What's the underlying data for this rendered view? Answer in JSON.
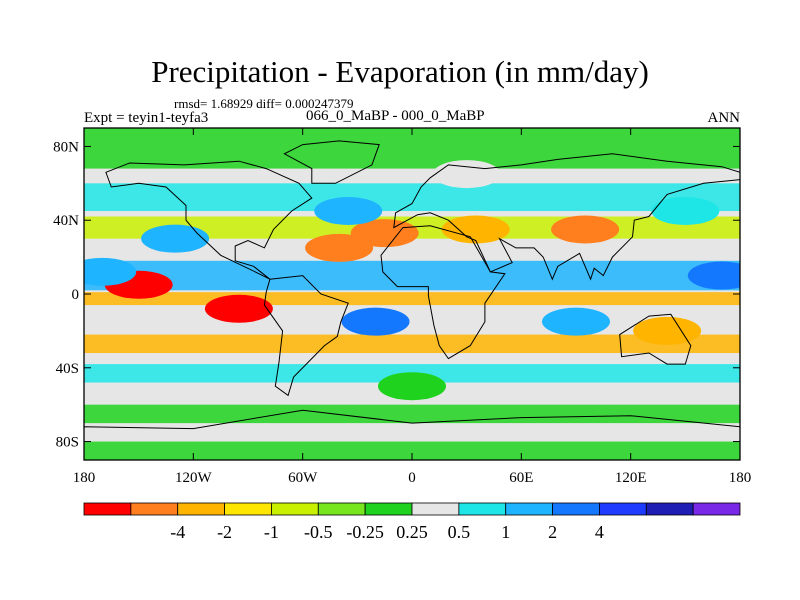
{
  "title": "Precipitation - Evaporation (in mm/day)",
  "stats": "rmsd= 1.68929 diff= 0.000247379",
  "experiment": "Expt = teyin1-teyfa3",
  "difference_case": "066_0_MaBP - 000_0_MaBP",
  "season": "ANN",
  "lon_tick_labels": [
    "180",
    "120W",
    "60W",
    "0",
    "60E",
    "120E",
    "180"
  ],
  "lat_tick_labels": [
    "80N",
    "40N",
    "0",
    "40S",
    "80S"
  ],
  "colorbar": {
    "colors": [
      "#ff0000",
      "#ff7f1e",
      "#ffb400",
      "#ffe600",
      "#c8f000",
      "#78e61e",
      "#1ed21e",
      "#e6e6e6",
      "#1ee6e6",
      "#1eb4ff",
      "#1478ff",
      "#1e3cff",
      "#1e1eb4",
      "#7828e6"
    ],
    "tick_labels": [
      "-4",
      "-2",
      "-1",
      "-0.5",
      "-0.25",
      "0.25",
      "0.5",
      "1",
      "2",
      "4"
    ]
  },
  "chart_data": {
    "type": "heatmap",
    "title": "Precipitation - Evaporation (in mm/day)",
    "xlim": [
      -180,
      180
    ],
    "ylim": [
      -90,
      90
    ],
    "x_ticks": [
      -180,
      -120,
      -60,
      0,
      60,
      120,
      180
    ],
    "y_ticks": [
      80,
      40,
      0,
      -40,
      -80
    ],
    "contour_levels": [
      -4,
      -2,
      -1,
      -0.5,
      -0.25,
      0.25,
      0.5,
      1,
      2,
      4
    ],
    "regions": [
      {
        "lon": -150,
        "lat": 5,
        "value": -5
      },
      {
        "lon": -95,
        "lat": -8,
        "value": -5
      },
      {
        "lon": -40,
        "lat": 25,
        "value": -3
      },
      {
        "lon": -15,
        "lat": 33,
        "value": -3
      },
      {
        "lon": 35,
        "lat": 35,
        "value": -2
      },
      {
        "lon": 95,
        "lat": 35,
        "value": -4
      },
      {
        "lon": 140,
        "lat": -20,
        "value": -2
      },
      {
        "lon": -130,
        "lat": 30,
        "value": 3
      },
      {
        "lon": -170,
        "lat": 12,
        "value": 3
      },
      {
        "lon": 170,
        "lat": 10,
        "value": 5
      },
      {
        "lon": -20,
        "lat": -15,
        "value": 5
      },
      {
        "lon": 90,
        "lat": -15,
        "value": 3
      },
      {
        "lon": -35,
        "lat": 45,
        "value": 3
      },
      {
        "lon": 150,
        "lat": 45,
        "value": 1.5
      },
      {
        "lon": 0,
        "lat": -50,
        "value": 0.4
      },
      {
        "lon": 30,
        "lat": 65,
        "value": 0.75
      }
    ]
  }
}
